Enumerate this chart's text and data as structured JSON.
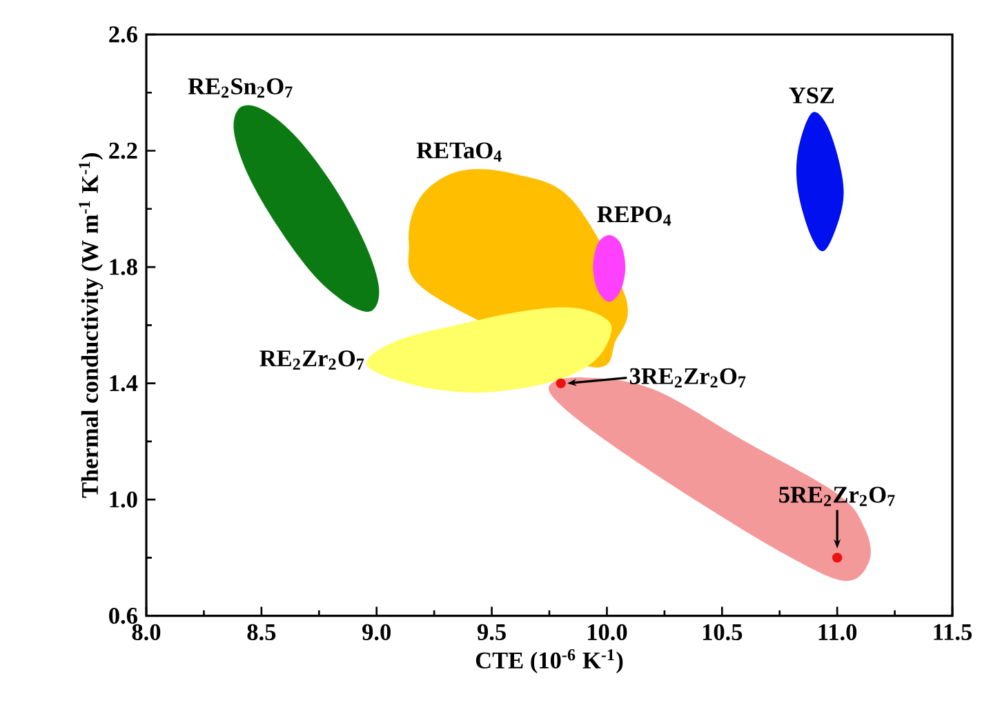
{
  "chart_data": {
    "type": "area",
    "xlabel": "CTE (10$^{-6}$ K$^{-1}$)",
    "ylabel": "Thermal conductivity (W m$^{-1}$ K$^{-1}$)",
    "xlim": [
      8.0,
      11.5
    ],
    "ylim": [
      0.6,
      2.6
    ],
    "xticks": [
      {
        "value": 8.0,
        "label": "8.0"
      },
      {
        "value": 8.5,
        "label": "8.5"
      },
      {
        "value": 9.0,
        "label": "9.0"
      },
      {
        "value": 9.5,
        "label": "9.5"
      },
      {
        "value": 10.0,
        "label": "10.0"
      },
      {
        "value": 10.5,
        "label": "10.5"
      },
      {
        "value": 11.0,
        "label": "11.0"
      },
      {
        "value": 11.5,
        "label": "11.5"
      }
    ],
    "yticks": [
      {
        "value": 0.6,
        "label": "0.6"
      },
      {
        "value": 1.0,
        "label": "1.0"
      },
      {
        "value": 1.4,
        "label": "1.4"
      },
      {
        "value": 1.8,
        "label": "1.8"
      },
      {
        "value": 2.2,
        "label": "2.2"
      },
      {
        "value": 2.6,
        "label": "2.6"
      }
    ],
    "series": [
      {
        "color": "#f4999a",
        "x": [
          9.76,
          9.9,
          10.2,
          10.6,
          11.0,
          11.12,
          11.14,
          11.04,
          10.8,
          10.4,
          10.0,
          9.78
        ],
        "values": [
          1.4,
          1.42,
          1.38,
          1.2,
          1.02,
          0.9,
          0.79,
          0.72,
          0.8,
          0.99,
          1.2,
          1.34
        ]
      },
      {
        "name": "RE$_{2}$Sn$_{2}$O$_{7}$",
        "color": "#0b7a12",
        "x": [
          8.98,
          8.88,
          8.73,
          8.57,
          8.44,
          8.38,
          8.41,
          8.51,
          8.66,
          8.82,
          8.95,
          9.01
        ],
        "values": [
          1.65,
          1.67,
          1.77,
          1.94,
          2.12,
          2.27,
          2.35,
          2.34,
          2.24,
          2.07,
          1.88,
          1.73
        ]
      },
      {
        "name": "RETaO$_{4}$",
        "color": "#ffbf00",
        "x": [
          10.04,
          9.91,
          9.67,
          9.42,
          9.23,
          9.14,
          9.19,
          9.36,
          9.6,
          9.85,
          10.01,
          10.08
        ],
        "values": [
          1.55,
          1.46,
          null,
          null,
          1.71,
          1.88,
          2.04,
          2.13,
          2.12,
          2.03,
          null,
          1.7
        ]
      },
      {
        "name": "RE$_{2}$Zr$_{2}$O$_{7}$",
        "color": "#ffff66",
        "x": [
          10.02,
          9.98,
          9.85,
          9.65,
          9.4,
          9.1,
          8.96,
          9.02,
          9.25,
          9.5,
          9.78,
          9.95
        ],
        "values": [
          1.58,
          1.63,
          1.66,
          1.65,
          1.61,
          1.55,
          1.48,
          1.43,
          1.38,
          1.37,
          1.41,
          1.48
        ]
      },
      {
        "name": "REPO$_{4}$",
        "color": "#ff40ff",
        "x": [
          10.01,
          10.06,
          10.08,
          10.06,
          10.01,
          9.96,
          9.94,
          9.96
        ],
        "values": [
          1.91,
          1.88,
          1.8,
          1.72,
          1.68,
          1.72,
          1.8,
          1.88
        ]
      },
      {
        "name": "YSZ",
        "color": "#0010ee",
        "x": [
          10.89,
          10.96,
          11.02,
          11.02,
          10.95,
          10.89,
          10.83,
          10.83
        ],
        "values": [
          2.33,
          2.28,
          2.12,
          2.0,
          1.86,
          1.9,
          2.06,
          2.2
        ]
      },
      {
        "type": "scatter",
        "color": "#ee1111",
        "marker": "circle",
        "x": [
          9.8,
          11.0
        ],
        "values": [
          1.4,
          0.8
        ]
      }
    ],
    "annotations": [
      {
        "text": "3RE$_{2}$Zr$_{2}$O$_{7}$",
        "x": 9.8,
        "y": 1.4
      },
      {
        "text": "5RE$_{2}$Zr$_{2}$O$_{7}$",
        "x": 11.0,
        "y": 0.8
      }
    ]
  }
}
